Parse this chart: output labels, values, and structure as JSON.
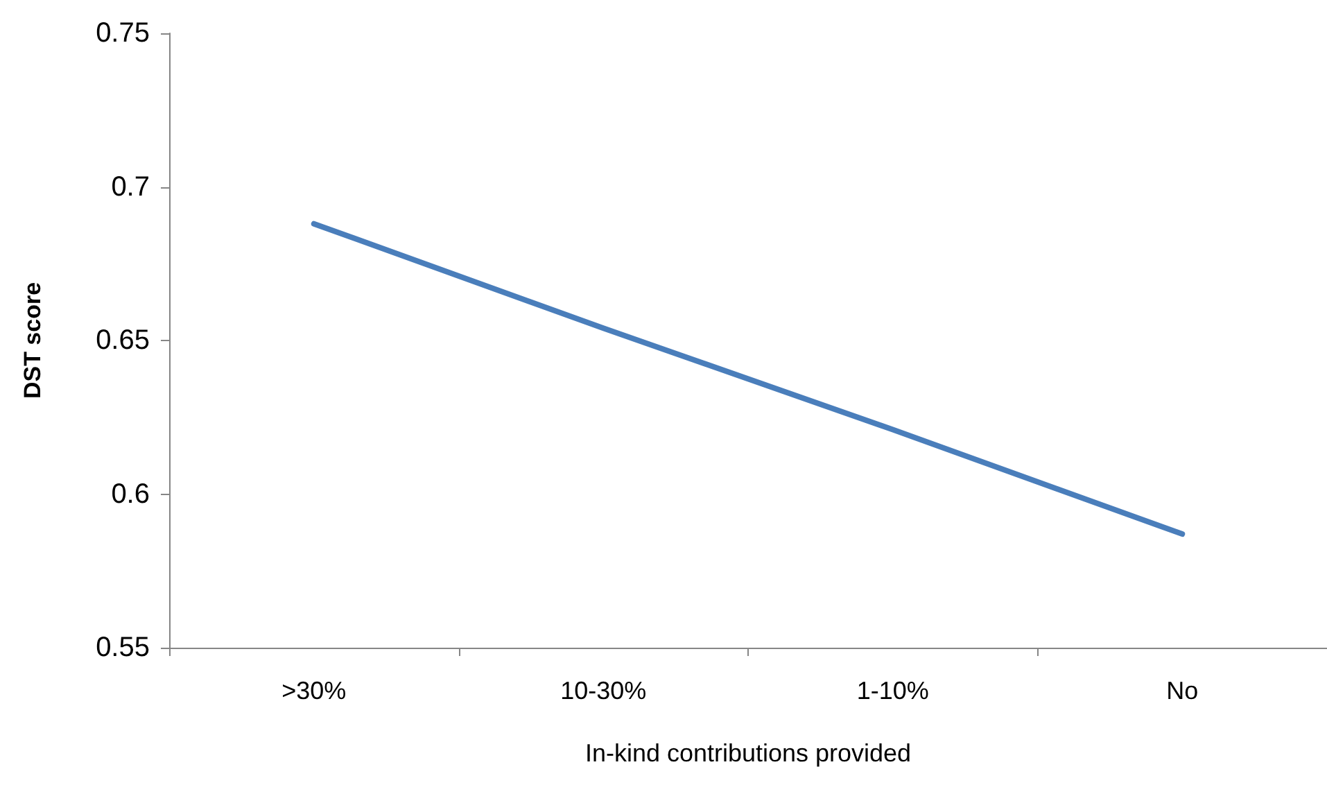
{
  "chart_data": {
    "type": "line",
    "xlabel": "In-kind contributions provided",
    "ylabel": "DST score",
    "categories": [
      ">30%",
      "10-30%",
      "1-10%",
      "No"
    ],
    "series": [
      {
        "color": "#4a7ebb",
        "values": [
          0.688,
          0.654,
          0.621,
          0.587
        ]
      }
    ],
    "ylim": [
      0.55,
      0.75
    ],
    "yticks": [
      0.55,
      0.6,
      0.65,
      0.7,
      0.75
    ],
    "grid": false,
    "marker": "none",
    "line_style": "solid"
  }
}
